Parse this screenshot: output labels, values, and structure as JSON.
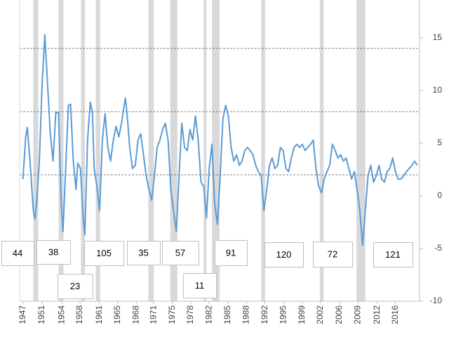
{
  "chart_data": {
    "type": "line",
    "series": [
      {
        "color": "#5b9bd5",
        "x": [
          1947,
          1947.5,
          1947.8,
          1948.3,
          1948.9,
          1949.2,
          1949.5,
          1950,
          1950.5,
          1951,
          1951.5,
          1952,
          1952.5,
          1953,
          1953.5,
          1954,
          1954.3,
          1954.8,
          1955.3,
          1955.7,
          1956.2,
          1956.7,
          1957,
          1957.5,
          1958,
          1958.3,
          1958.8,
          1959.3,
          1959.7,
          1960,
          1960.5,
          1961,
          1961.5,
          1962,
          1962.5,
          1963,
          1963.5,
          1964,
          1964.5,
          1965,
          1965.7,
          1966,
          1966.5,
          1967,
          1967.5,
          1968,
          1968.5,
          1969,
          1969.5,
          1970,
          1970.5,
          1971,
          1971.5,
          1972,
          1972.5,
          1973,
          1973.5,
          1974,
          1974.5,
          1975,
          1975.5,
          1976,
          1976.5,
          1977,
          1977.5,
          1978,
          1978.5,
          1979,
          1979.5,
          1980,
          1980.5,
          1981,
          1981.5,
          1982,
          1982.5,
          1983,
          1983.5,
          1984,
          1984.5,
          1985,
          1985.5,
          1986,
          1986.5,
          1987,
          1987.5,
          1988,
          1988.5,
          1989,
          1989.5,
          1990,
          1990.5,
          1991,
          1991.5,
          1992,
          1992.5,
          1993,
          1993.5,
          1994,
          1994.5,
          1995,
          1995.5,
          1996,
          1996.5,
          1997,
          1997.5,
          1998,
          1998.5,
          1999,
          1999.5,
          2000,
          2000.5,
          2001,
          2001.5,
          2002,
          2002.5,
          2003,
          2003.5,
          2004,
          2004.5,
          2005,
          2005.5,
          2006,
          2006.5,
          2007,
          2007.5,
          2008,
          2008.5,
          2009,
          2009.5,
          2010,
          2010.5,
          2011,
          2011.5,
          2012,
          2012.5,
          2013,
          2013.5,
          2014,
          2014.5,
          2015,
          2015.5,
          2016,
          2016.5,
          2017,
          2017.5,
          2018,
          2018.5,
          2019
        ],
        "values": [
          1.6,
          5.6,
          6.5,
          3.3,
          -1.4,
          -2.2,
          -0.7,
          3.3,
          10.6,
          15.3,
          10.6,
          5.9,
          3.3,
          7.9,
          7.9,
          -0.7,
          -3.4,
          2.6,
          8.6,
          8.7,
          3.3,
          0.6,
          3.1,
          2.6,
          -2.1,
          -3.7,
          5.3,
          8.9,
          7.9,
          2.6,
          0.9,
          -1.4,
          5.3,
          7.8,
          4.6,
          3.3,
          5.3,
          6.6,
          5.6,
          6.9,
          9.3,
          7.9,
          4.6,
          2.6,
          2.9,
          5.3,
          5.9,
          3.9,
          1.9,
          0.6,
          -0.4,
          1.9,
          4.6,
          5.3,
          6.3,
          6.9,
          5.3,
          0.6,
          -1.4,
          -3.4,
          1.9,
          6.9,
          4.6,
          4.3,
          6.3,
          5.3,
          7.6,
          5.3,
          1.3,
          0.9,
          -2.1,
          2.6,
          4.9,
          -0.7,
          -2.7,
          1.9,
          7.3,
          8.6,
          7.6,
          4.6,
          3.3,
          3.9,
          2.9,
          3.3,
          4.3,
          4.6,
          4.3,
          3.9,
          2.9,
          2.3,
          1.9,
          -1.4,
          0.6,
          2.9,
          3.6,
          2.6,
          2.9,
          4.6,
          4.3,
          2.6,
          2.3,
          3.6,
          4.6,
          4.9,
          4.6,
          4.9,
          4.3,
          4.6,
          4.9,
          5.3,
          2.6,
          0.9,
          0.3,
          1.6,
          2.3,
          2.9,
          4.9,
          4.3,
          3.6,
          3.9,
          3.3,
          3.6,
          2.6,
          1.6,
          2.3,
          0.6,
          -1.4,
          -4.7,
          -1.4,
          1.9,
          2.9,
          1.3,
          1.9,
          2.9,
          1.6,
          1.3,
          2.3,
          2.6,
          3.6,
          2.3,
          1.6,
          1.6,
          1.9,
          2.3,
          2.6,
          2.9,
          3.3,
          2.9
        ]
      }
    ],
    "shaded_periods": [
      [
        1948.9,
        1949.8
      ],
      [
        1953.5,
        1954.4
      ],
      [
        1957.6,
        1958.3
      ],
      [
        1960.3,
        1961.1
      ],
      [
        1969.9,
        1970.9
      ],
      [
        1973.9,
        1975.2
      ],
      [
        1980.0,
        1980.5
      ],
      [
        1981.5,
        1982.9
      ],
      [
        1990.5,
        1991.2
      ],
      [
        2001.2,
        2001.9
      ],
      [
        2007.9,
        2009.5
      ]
    ],
    "grid_lines": [
      14,
      8,
      2
    ],
    "xlim": [
      1946.4,
      2019.4
    ],
    "xticks": [
      {
        "value": 1947.0,
        "label": "1947"
      },
      {
        "value": 1950.5,
        "label": "1951"
      },
      {
        "value": 1954.1,
        "label": "1954"
      },
      {
        "value": 1957.4,
        "label": "1958"
      },
      {
        "value": 1961.0,
        "label": "1961"
      },
      {
        "value": 1964.3,
        "label": "1965"
      },
      {
        "value": 1967.7,
        "label": "1968"
      },
      {
        "value": 1970.9,
        "label": "1971"
      },
      {
        "value": 1974.3,
        "label": "1975"
      },
      {
        "value": 1977.6,
        "label": "1978"
      },
      {
        "value": 1981.0,
        "label": "1982"
      },
      {
        "value": 1984.4,
        "label": "1985"
      },
      {
        "value": 1987.8,
        "label": "1988"
      },
      {
        "value": 1991.2,
        "label": "1992"
      },
      {
        "value": 1994.6,
        "label": "1995"
      },
      {
        "value": 1998.0,
        "label": "1999"
      },
      {
        "value": 2001.3,
        "label": "2002"
      },
      {
        "value": 2004.8,
        "label": "2006"
      },
      {
        "value": 2008.2,
        "label": "2009"
      },
      {
        "value": 2011.7,
        "label": "2012"
      },
      {
        "value": 2015.0,
        "label": "2016"
      }
    ],
    "ylim": [
      -10,
      18.6
    ],
    "yticks": [
      15,
      10,
      5,
      0,
      -5,
      -10
    ],
    "annotations": [
      "44",
      "38",
      "23",
      "105",
      "35",
      "57",
      "11",
      "91",
      "120",
      "72",
      "121"
    ]
  }
}
